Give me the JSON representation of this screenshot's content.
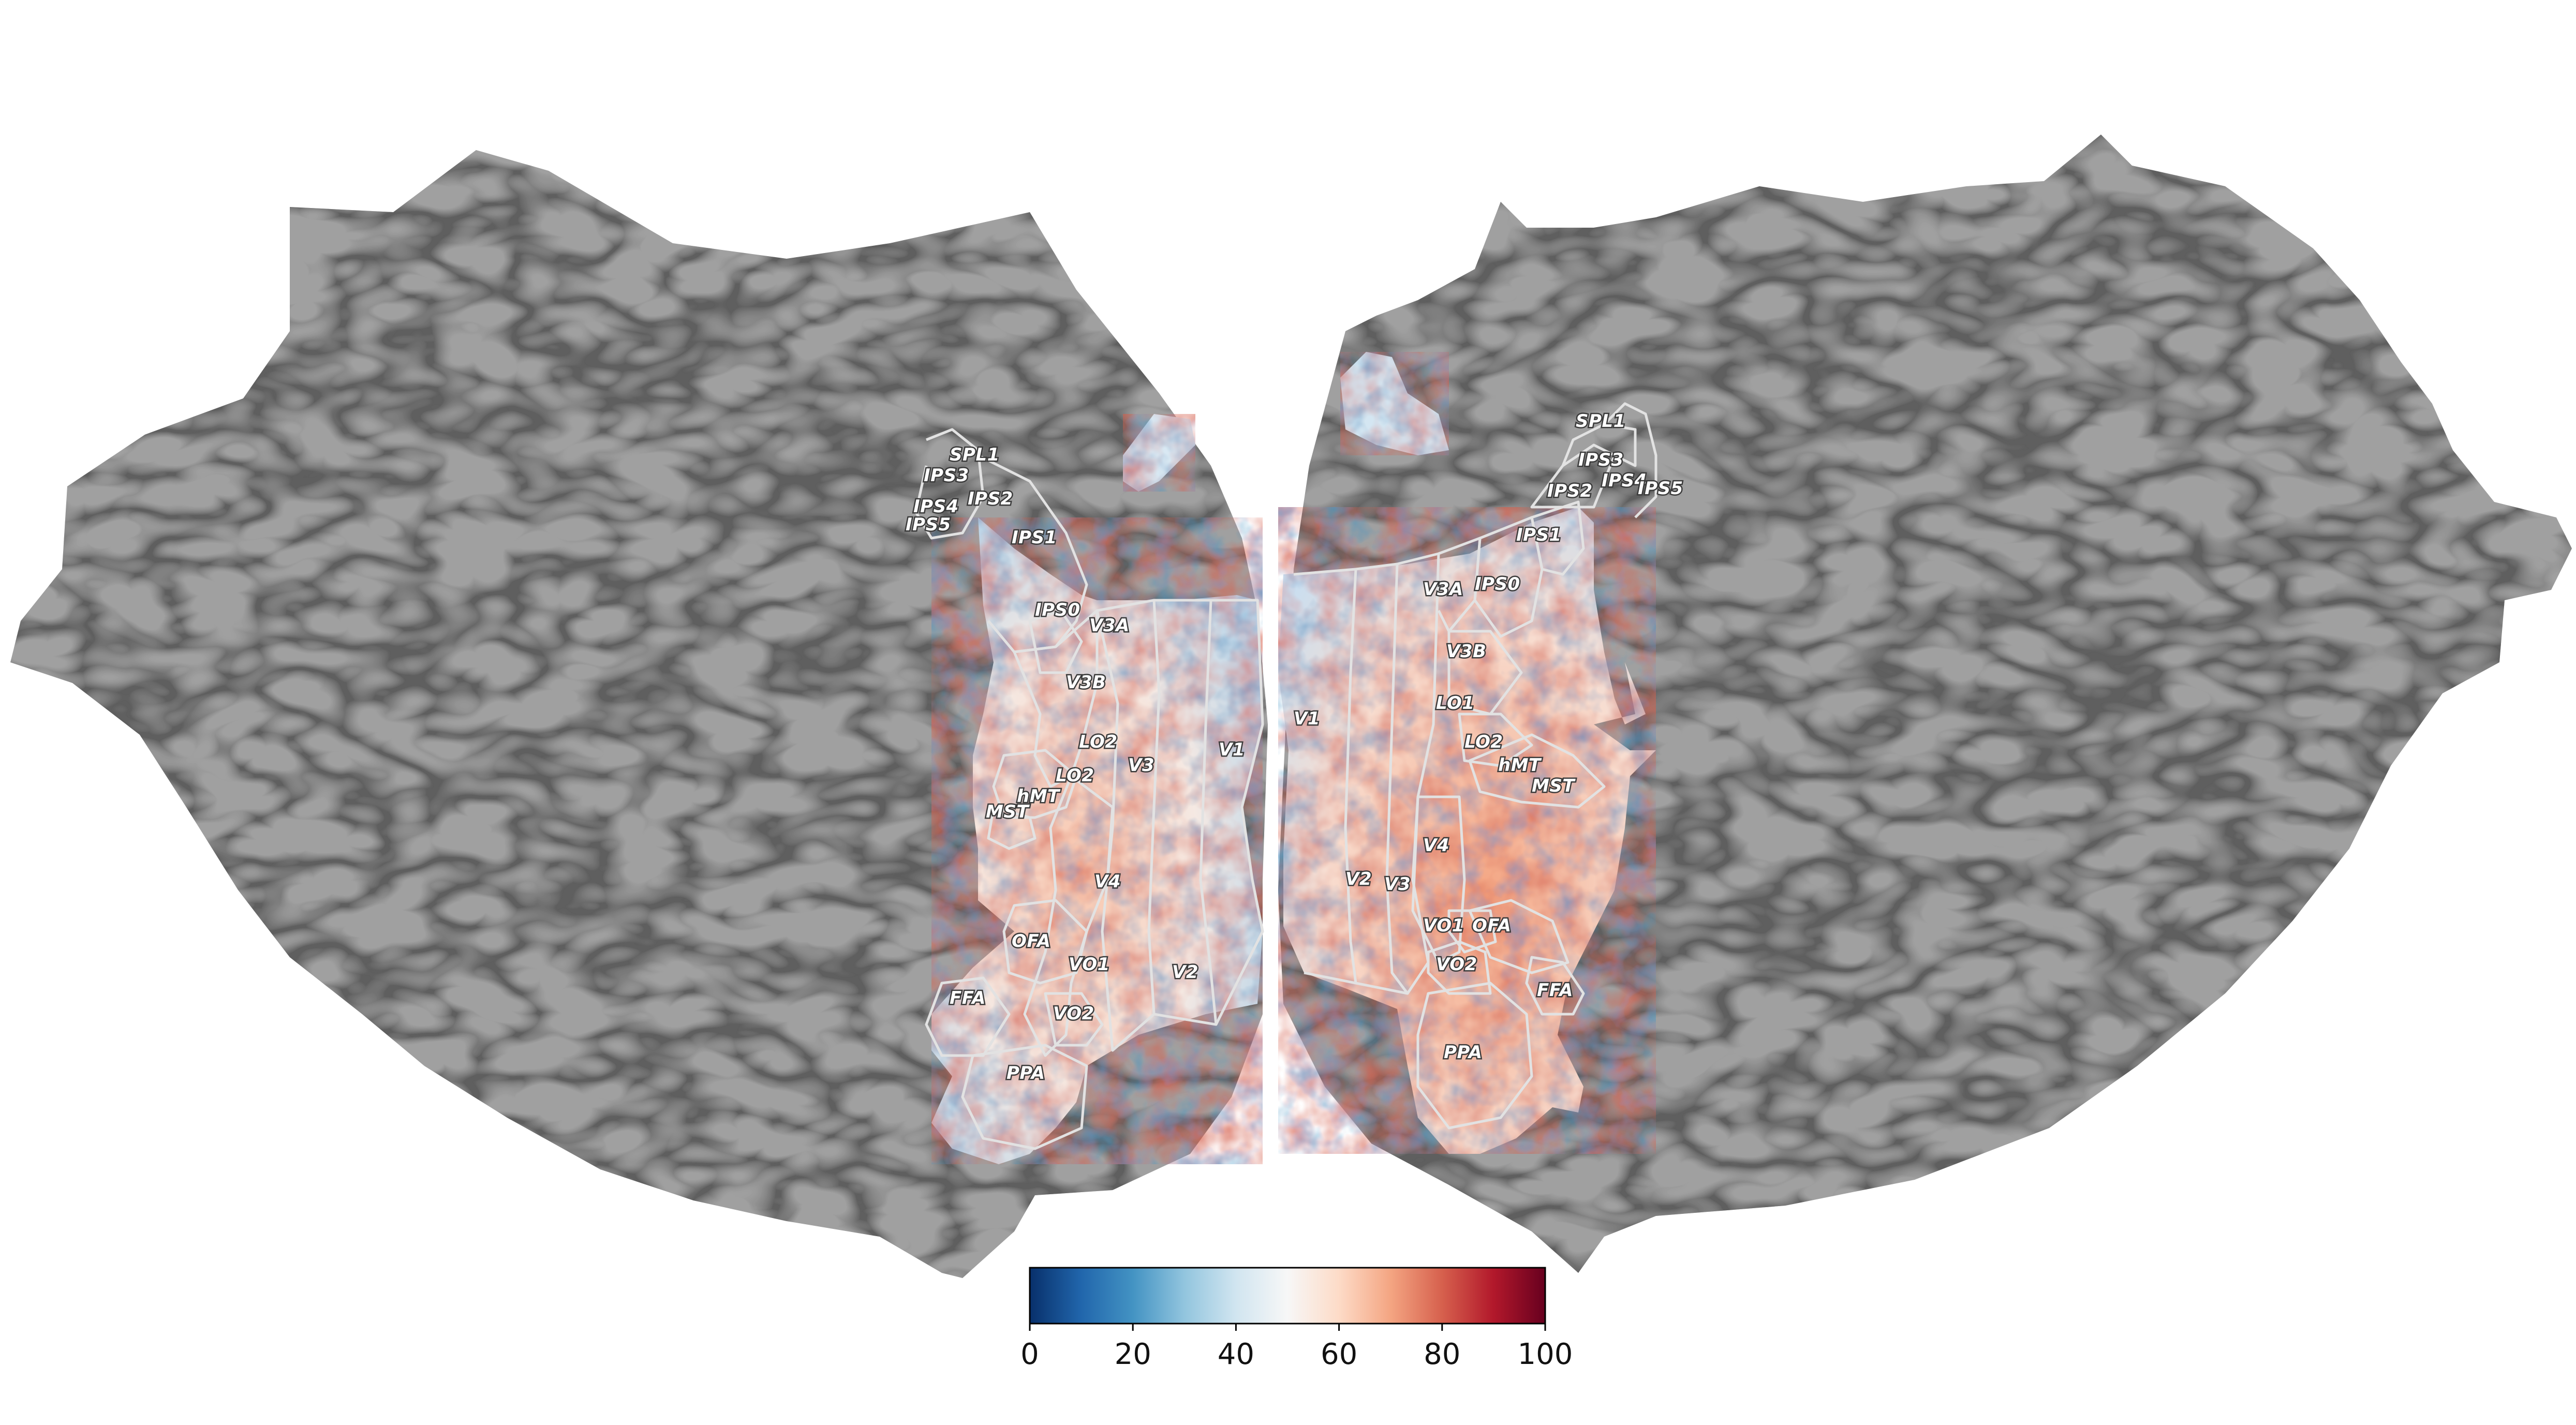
{
  "colors": {
    "background": "#ffffff",
    "gyri": "#a0a0a0",
    "sulci": "#5e5e5e",
    "roi_border": "#e2e2e2",
    "colormap": [
      "#08306b",
      "#2166ac",
      "#4393c3",
      "#92c5de",
      "#d1e5f0",
      "#f7f7f7",
      "#fddbc7",
      "#f4a582",
      "#d6604d",
      "#b2182b",
      "#67001f"
    ]
  },
  "colorbar": {
    "min": 0,
    "max": 100,
    "ticks": [
      "0",
      "20",
      "40",
      "60",
      "80",
      "100"
    ]
  },
  "left_hemisphere": {
    "labels": [
      {
        "id": "spl1",
        "text": "SPL1"
      },
      {
        "id": "ips3",
        "text": "IPS3"
      },
      {
        "id": "ips4",
        "text": "IPS4"
      },
      {
        "id": "ips5",
        "text": "IPS5"
      },
      {
        "id": "ips2",
        "text": "IPS2"
      },
      {
        "id": "ips1",
        "text": "IPS1"
      },
      {
        "id": "ips0",
        "text": "IPS0"
      },
      {
        "id": "v3a",
        "text": "V3A"
      },
      {
        "id": "v3b",
        "text": "V3B"
      },
      {
        "id": "lo2a",
        "text": "LO2"
      },
      {
        "id": "lo2b",
        "text": "LO2"
      },
      {
        "id": "v3",
        "text": "V3"
      },
      {
        "id": "v1",
        "text": "V1"
      },
      {
        "id": "hmt",
        "text": "hMT"
      },
      {
        "id": "mst",
        "text": "MST"
      },
      {
        "id": "v4",
        "text": "V4"
      },
      {
        "id": "v2",
        "text": "V2"
      },
      {
        "id": "ofa",
        "text": "OFA"
      },
      {
        "id": "vo1",
        "text": "VO1"
      },
      {
        "id": "ffa",
        "text": "FFA"
      },
      {
        "id": "vo2",
        "text": "VO2"
      },
      {
        "id": "ppa",
        "text": "PPA"
      }
    ]
  },
  "right_hemisphere": {
    "labels": [
      {
        "id": "spl1",
        "text": "SPL1"
      },
      {
        "id": "ips3",
        "text": "IPS3"
      },
      {
        "id": "ips4",
        "text": "IPS4"
      },
      {
        "id": "ips5",
        "text": "IPS5"
      },
      {
        "id": "ips2",
        "text": "IPS2"
      },
      {
        "id": "ips1",
        "text": "IPS1"
      },
      {
        "id": "v3a",
        "text": "V3A"
      },
      {
        "id": "ips0",
        "text": "IPS0"
      },
      {
        "id": "v3b",
        "text": "V3B"
      },
      {
        "id": "v1",
        "text": "V1"
      },
      {
        "id": "lo1",
        "text": "LO1"
      },
      {
        "id": "lo2",
        "text": "LO2"
      },
      {
        "id": "hmt",
        "text": "hMT"
      },
      {
        "id": "mst",
        "text": "MST"
      },
      {
        "id": "v4",
        "text": "V4"
      },
      {
        "id": "v2",
        "text": "V2"
      },
      {
        "id": "v3",
        "text": "V3"
      },
      {
        "id": "vo1",
        "text": "VO1"
      },
      {
        "id": "ofa",
        "text": "OFA"
      },
      {
        "id": "vo2",
        "text": "VO2"
      },
      {
        "id": "ffa",
        "text": "FFA"
      },
      {
        "id": "ppa",
        "text": "PPA"
      }
    ]
  }
}
